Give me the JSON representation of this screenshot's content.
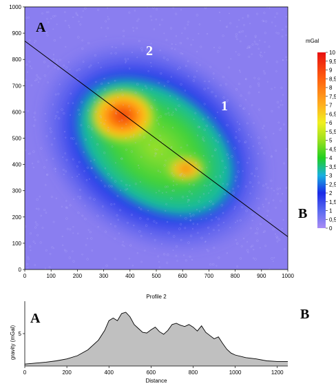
{
  "map_panel": {
    "colorbar_title": "mGal",
    "colorbar_ticks": [
      "10",
      "9,5",
      "9",
      "8,5",
      "8",
      "7,5",
      "7",
      "6,5",
      "6",
      "5,5",
      "5",
      "4,5",
      "4",
      "3,5",
      "3",
      "2,5",
      "2",
      "1,5",
      "1",
      "0,5",
      "0"
    ],
    "labels": {
      "a": "A",
      "b": "B",
      "two": "2",
      "one": "1"
    }
  },
  "profile_panel": {
    "labels": {
      "a": "A",
      "b": "B"
    }
  },
  "chart_data": [
    {
      "type": "heatmap",
      "xlim": [
        0,
        1000
      ],
      "ylim": [
        0,
        1000
      ],
      "x_ticks": [
        "0",
        "100",
        "200",
        "300",
        "400",
        "500",
        "600",
        "700",
        "800",
        "900",
        "1000"
      ],
      "y_ticks": [
        "0",
        "100",
        "200",
        "300",
        "400",
        "500",
        "600",
        "700",
        "800",
        "900",
        "1000"
      ],
      "colorbar": {
        "label": "mGal",
        "range": [
          0,
          10
        ]
      },
      "anomalies": [
        {
          "label": "peak",
          "x": 370,
          "y": 590,
          "value": 9.5
        },
        {
          "label": "secondary",
          "x": 620,
          "y": 380,
          "value": 8
        }
      ],
      "profile_line": {
        "label_start": "A",
        "label_end": "B",
        "from": [
          0,
          870
        ],
        "to": [
          1000,
          125
        ]
      },
      "annotations": [
        "2",
        "1"
      ]
    },
    {
      "type": "area",
      "title": "Profile 2",
      "xlabel": "Distance",
      "ylabel": "gravity (mGal)",
      "xlim": [
        0,
        1250
      ],
      "ylim": [
        0,
        10
      ],
      "x_ticks": [
        "0",
        "200",
        "400",
        "600",
        "800",
        "1000",
        "1200"
      ],
      "y_ticks": [
        "5"
      ],
      "x": [
        0,
        50,
        100,
        150,
        200,
        250,
        300,
        350,
        380,
        400,
        420,
        440,
        460,
        480,
        500,
        520,
        540,
        560,
        580,
        600,
        620,
        640,
        660,
        680,
        700,
        720,
        740,
        760,
        780,
        800,
        820,
        840,
        860,
        880,
        900,
        920,
        940,
        960,
        980,
        1000,
        1050,
        1100,
        1150,
        1200,
        1250
      ],
      "y": [
        0.3,
        0.45,
        0.6,
        0.8,
        1.1,
        1.6,
        2.5,
        4.0,
        5.5,
        7.0,
        7.4,
        7.0,
        8.1,
        8.3,
        7.6,
        6.4,
        5.8,
        5.2,
        5.1,
        5.6,
        6.0,
        5.3,
        4.9,
        5.5,
        6.4,
        6.6,
        6.3,
        6.1,
        6.4,
        6.0,
        5.4,
        6.2,
        5.2,
        4.7,
        4.2,
        4.5,
        3.5,
        2.6,
        2.0,
        1.7,
        1.3,
        1.1,
        0.8,
        0.7,
        0.7
      ]
    }
  ]
}
